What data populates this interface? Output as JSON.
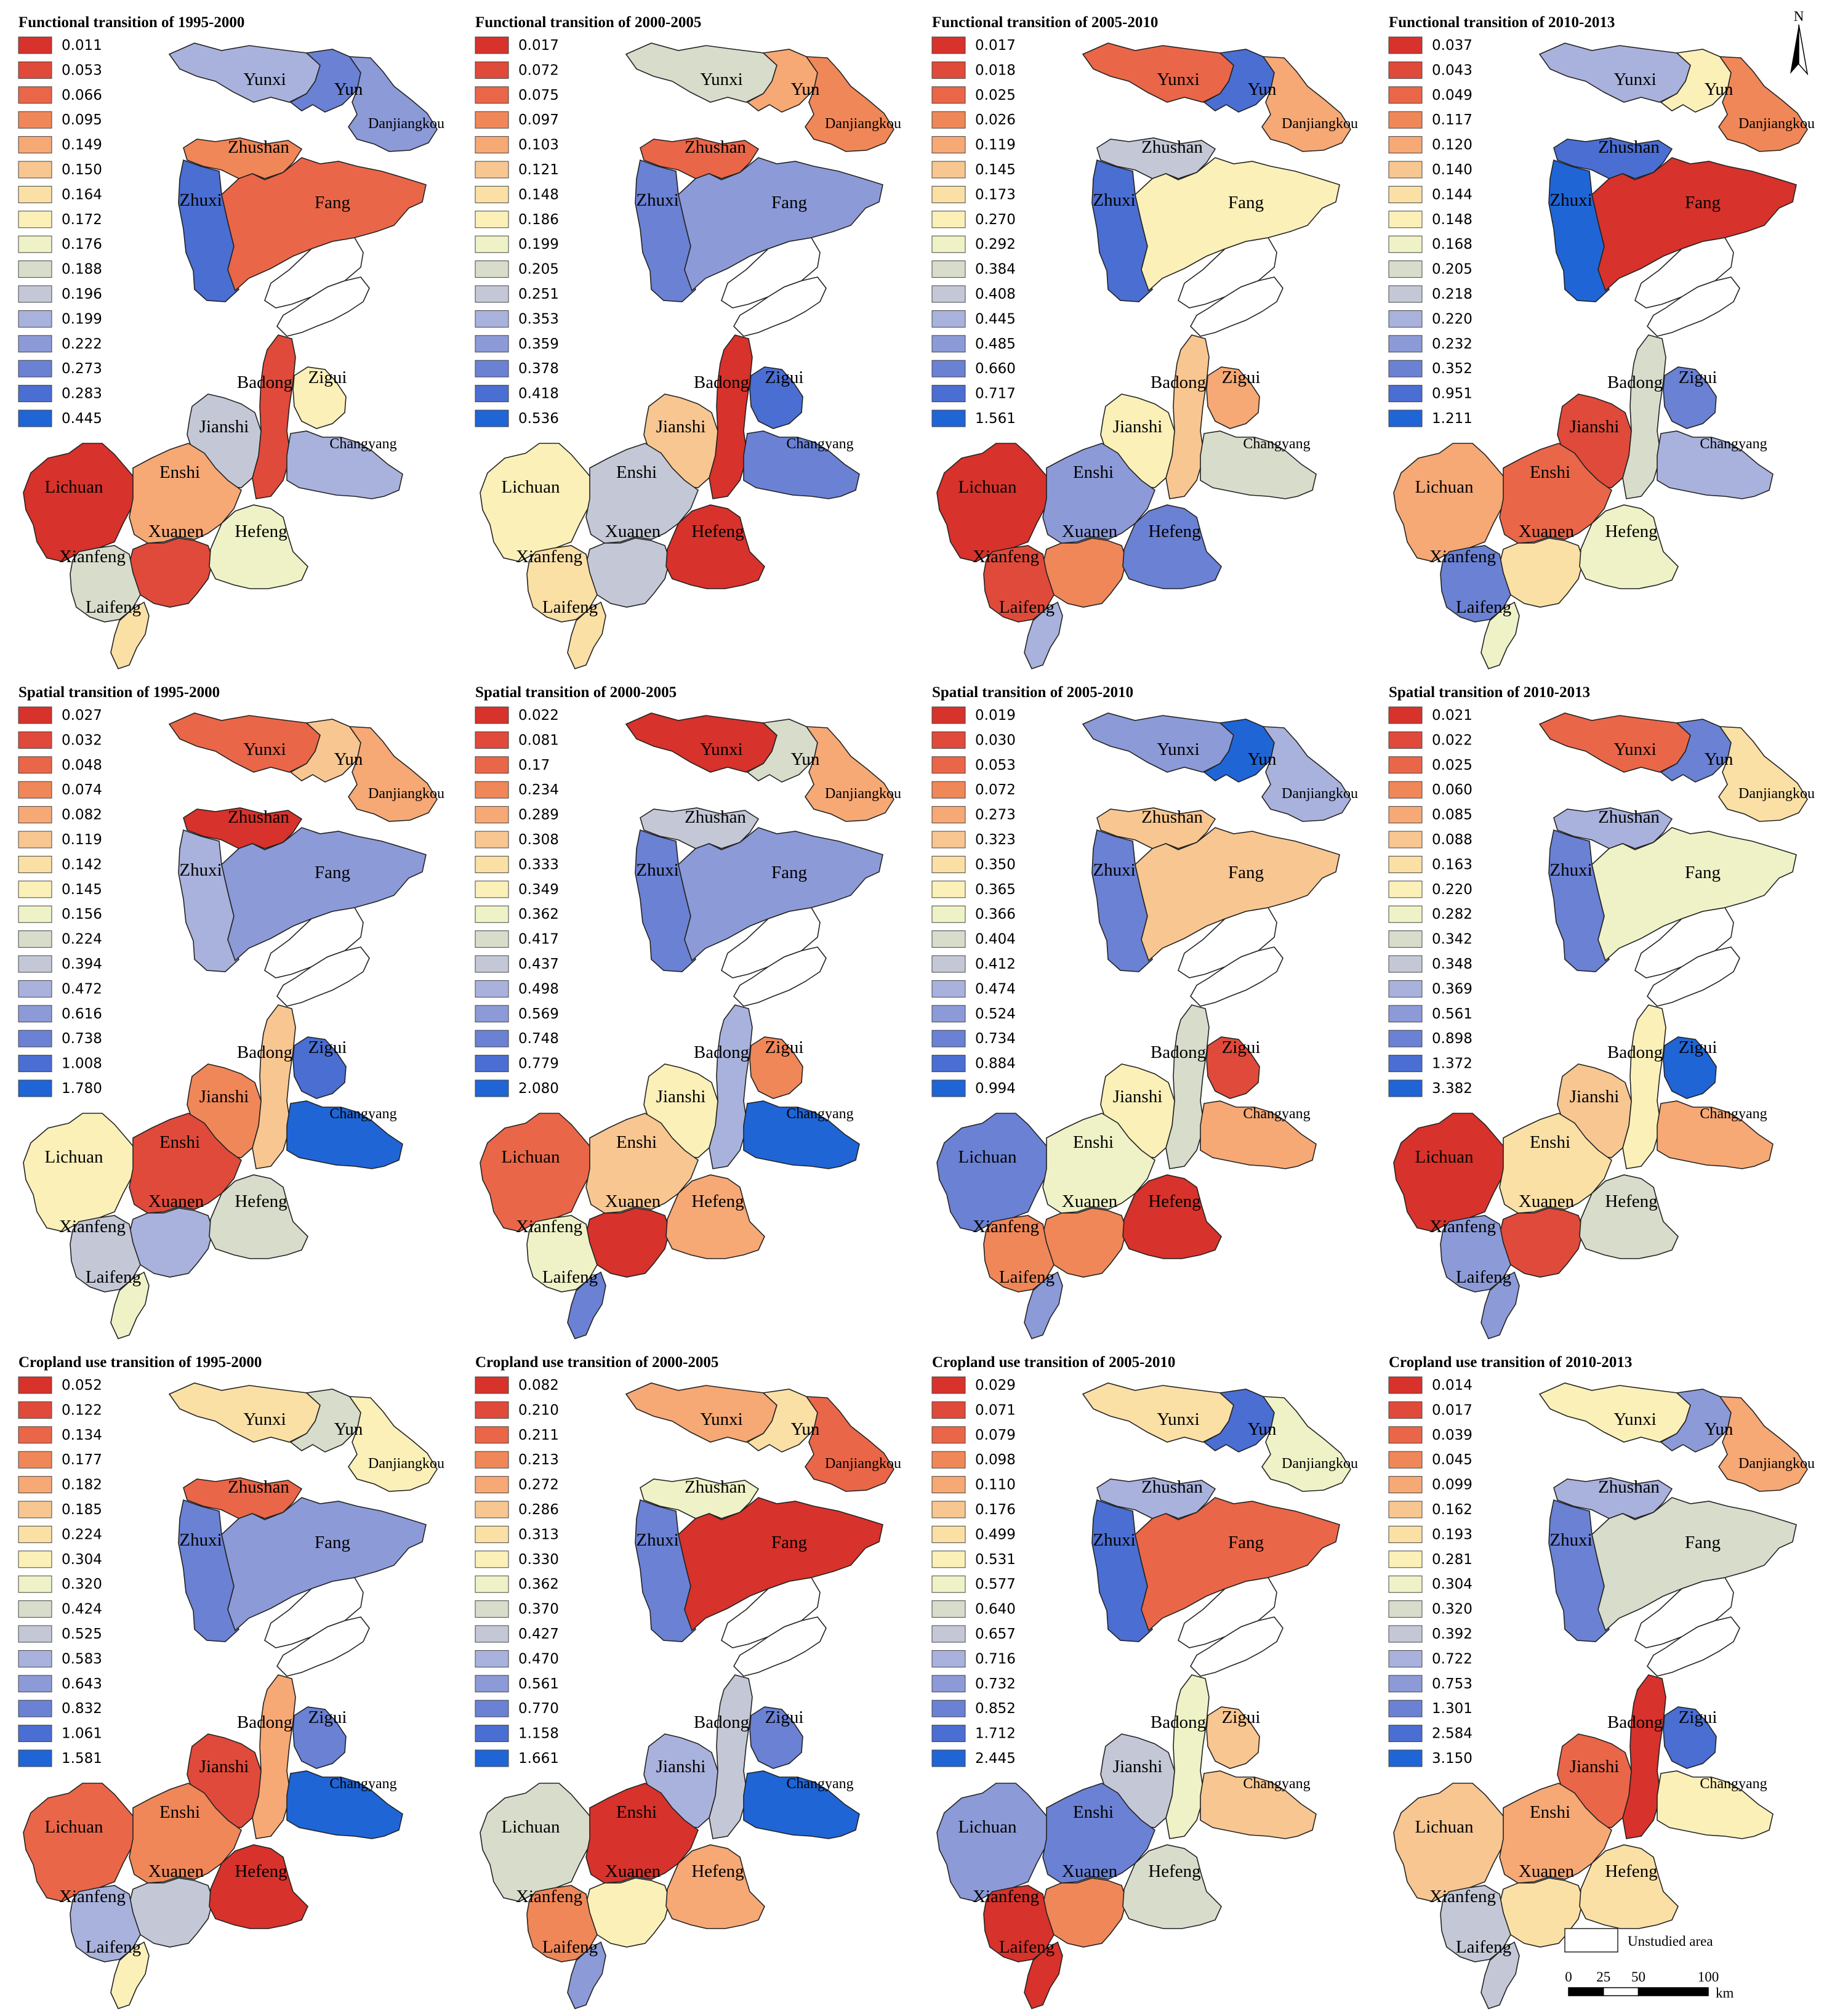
{
  "panels": [
    {
      "title": "Functional transition of 1995-2000",
      "legend": [
        "0.011",
        "0.053",
        "0.066",
        "0.095",
        "0.149",
        "0.150",
        "0.164",
        "0.172",
        "0.176",
        "0.188",
        "0.196",
        "0.199",
        "0.222",
        "0.273",
        "0.283",
        "0.445"
      ],
      "counties": {
        "Yunxi": "0.199",
        "Yun": "0.273",
        "Danjiangkou": "0.222",
        "Zhushan": "0.095",
        "Zhuxi": "0.283",
        "Fang": "0.066",
        "Badong": "0.053",
        "Zigui": "0.172",
        "Jianshi": "0.196",
        "Changyang": "0.199",
        "Lichuan": "0.011",
        "Enshi": "0.149",
        "Xuanen": "0.053",
        "Hefeng": "0.176",
        "Xianfeng": "0.188",
        "Laifeng": "0.164"
      }
    },
    {
      "title": "Functional transition of 2000-2005",
      "legend": [
        "0.017",
        "0.072",
        "0.075",
        "0.097",
        "0.103",
        "0.121",
        "0.148",
        "0.186",
        "0.199",
        "0.205",
        "0.251",
        "0.353",
        "0.359",
        "0.378",
        "0.418",
        "0.536"
      ],
      "counties": {
        "Yunxi": "0.205",
        "Yun": "0.103",
        "Danjiangkou": "0.097",
        "Zhushan": "0.075",
        "Zhuxi": "0.378",
        "Fang": "0.359",
        "Badong": "0.017",
        "Zigui": "0.418",
        "Jianshi": "0.121",
        "Changyang": "0.378",
        "Lichuan": "0.186",
        "Enshi": "0.251",
        "Xuanen": "0.251",
        "Hefeng": "0.017",
        "Xianfeng": "0.148",
        "Laifeng": "0.148"
      }
    },
    {
      "title": "Functional transition of 2005-2010",
      "legend": [
        "0.017",
        "0.018",
        "0.025",
        "0.026",
        "0.119",
        "0.145",
        "0.173",
        "0.270",
        "0.292",
        "0.384",
        "0.408",
        "0.445",
        "0.485",
        "0.660",
        "0.717",
        "1.561"
      ],
      "counties": {
        "Yunxi": "0.025",
        "Yun": "0.717",
        "Danjiangkou": "0.119",
        "Zhushan": "0.408",
        "Zhuxi": "0.717",
        "Fang": "0.270",
        "Badong": "0.145",
        "Zigui": "0.119",
        "Jianshi": "0.270",
        "Changyang": "0.384",
        "Lichuan": "0.017",
        "Enshi": "0.485",
        "Xuanen": "0.026",
        "Hefeng": "0.660",
        "Xianfeng": "0.018",
        "Laifeng": "0.445"
      }
    },
    {
      "title": "Functional transition of 2010-2013",
      "legend": [
        "0.037",
        "0.043",
        "0.049",
        "0.117",
        "0.120",
        "0.140",
        "0.144",
        "0.148",
        "0.168",
        "0.205",
        "0.218",
        "0.220",
        "0.232",
        "0.352",
        "0.951",
        "1.211"
      ],
      "counties": {
        "Yunxi": "0.220",
        "Yun": "0.148",
        "Danjiangkou": "0.117",
        "Zhushan": "0.951",
        "Zhuxi": "1.211",
        "Fang": "0.037",
        "Badong": "0.205",
        "Zigui": "0.352",
        "Jianshi": "0.043",
        "Changyang": "0.220",
        "Lichuan": "0.120",
        "Enshi": "0.049",
        "Xuanen": "0.144",
        "Hefeng": "0.168",
        "Xianfeng": "0.352",
        "Laifeng": "0.168"
      }
    },
    {
      "title": "Spatial transition of 1995-2000",
      "legend": [
        "0.027",
        "0.032",
        "0.048",
        "0.074",
        "0.082",
        "0.119",
        "0.142",
        "0.145",
        "0.156",
        "0.224",
        "0.394",
        "0.472",
        "0.616",
        "0.738",
        "1.008",
        "1.780"
      ],
      "counties": {
        "Yunxi": "0.048",
        "Yun": "0.119",
        "Danjiangkou": "0.082",
        "Zhushan": "0.027",
        "Zhuxi": "0.472",
        "Fang": "0.616",
        "Badong": "0.119",
        "Zigui": "1.008",
        "Jianshi": "0.074",
        "Changyang": "1.780",
        "Lichuan": "0.145",
        "Enshi": "0.032",
        "Xuanen": "0.472",
        "Hefeng": "0.224",
        "Xianfeng": "0.394",
        "Laifeng": "0.156"
      }
    },
    {
      "title": "Spatial transition of 2000-2005",
      "legend": [
        "0.022",
        "0.081",
        "0.17",
        "0.234",
        "0.289",
        "0.308",
        "0.333",
        "0.349",
        "0.362",
        "0.417",
        "0.437",
        "0.498",
        "0.569",
        "0.748",
        "0.779",
        "2.080"
      ],
      "counties": {
        "Yunxi": "0.022",
        "Yun": "0.417",
        "Danjiangkou": "0.289",
        "Zhushan": "0.437",
        "Zhuxi": "0.748",
        "Fang": "0.569",
        "Badong": "0.498",
        "Zigui": "0.234",
        "Jianshi": "0.349",
        "Changyang": "2.080",
        "Lichuan": "0.17",
        "Enshi": "0.308",
        "Xuanen": "0.022",
        "Hefeng": "0.289",
        "Xianfeng": "0.362",
        "Laifeng": "0.748"
      }
    },
    {
      "title": "Spatial transition of 2005-2010",
      "legend": [
        "0.019",
        "0.030",
        "0.053",
        "0.072",
        "0.273",
        "0.323",
        "0.350",
        "0.365",
        "0.366",
        "0.404",
        "0.412",
        "0.474",
        "0.524",
        "0.734",
        "0.884",
        "0.994"
      ],
      "counties": {
        "Yunxi": "0.524",
        "Yun": "0.994",
        "Danjiangkou": "0.474",
        "Zhushan": "0.323",
        "Zhuxi": "0.734",
        "Fang": "0.323",
        "Badong": "0.404",
        "Zigui": "0.030",
        "Jianshi": "0.365",
        "Changyang": "0.273",
        "Lichuan": "0.734",
        "Enshi": "0.366",
        "Xuanen": "0.072",
        "Hefeng": "0.019",
        "Xianfeng": "0.072",
        "Laifeng": "0.524"
      }
    },
    {
      "title": "Spatial transition of 2010-2013",
      "legend": [
        "0.021",
        "0.022",
        "0.025",
        "0.060",
        "0.085",
        "0.088",
        "0.163",
        "0.220",
        "0.282",
        "0.342",
        "0.348",
        "0.369",
        "0.561",
        "0.898",
        "1.372",
        "3.382"
      ],
      "counties": {
        "Yunxi": "0.025",
        "Yun": "0.898",
        "Danjiangkou": "0.163",
        "Zhushan": "0.369",
        "Zhuxi": "0.898",
        "Fang": "0.282",
        "Badong": "0.220",
        "Zigui": "3.382",
        "Jianshi": "0.088",
        "Changyang": "0.085",
        "Lichuan": "0.021",
        "Enshi": "0.163",
        "Xuanen": "0.022",
        "Hefeng": "0.342",
        "Xianfeng": "0.561",
        "Laifeng": "0.561"
      }
    },
    {
      "title": "Cropland use transition of 1995-2000",
      "legend": [
        "0.052",
        "0.122",
        "0.134",
        "0.177",
        "0.182",
        "0.185",
        "0.224",
        "0.304",
        "0.320",
        "0.424",
        "0.525",
        "0.583",
        "0.643",
        "0.832",
        "1.061",
        "1.581"
      ],
      "counties": {
        "Yunxi": "0.224",
        "Yun": "0.424",
        "Danjiangkou": "0.304",
        "Zhushan": "0.134",
        "Zhuxi": "0.832",
        "Fang": "0.643",
        "Badong": "0.182",
        "Zigui": "0.832",
        "Jianshi": "0.122",
        "Changyang": "1.581",
        "Lichuan": "0.134",
        "Enshi": "0.177",
        "Xuanen": "0.525",
        "Hefeng": "0.052",
        "Xianfeng": "0.583",
        "Laifeng": "0.304"
      }
    },
    {
      "title": "Cropland use transition of 2000-2005",
      "legend": [
        "0.082",
        "0.210",
        "0.211",
        "0.213",
        "0.272",
        "0.286",
        "0.313",
        "0.330",
        "0.362",
        "0.370",
        "0.427",
        "0.470",
        "0.561",
        "0.770",
        "1.158",
        "1.661"
      ],
      "counties": {
        "Yunxi": "0.272",
        "Yun": "0.313",
        "Danjiangkou": "0.211",
        "Zhushan": "0.362",
        "Zhuxi": "0.770",
        "Fang": "0.082",
        "Badong": "0.427",
        "Zigui": "0.770",
        "Jianshi": "0.470",
        "Changyang": "1.661",
        "Lichuan": "0.370",
        "Enshi": "0.082",
        "Xuanen": "0.330",
        "Hefeng": "0.272",
        "Xianfeng": "0.213",
        "Laifeng": "0.561"
      }
    },
    {
      "title": "Cropland use transition of 2005-2010",
      "legend": [
        "0.029",
        "0.071",
        "0.079",
        "0.098",
        "0.110",
        "0.176",
        "0.499",
        "0.531",
        "0.577",
        "0.640",
        "0.657",
        "0.716",
        "0.732",
        "0.852",
        "1.712",
        "2.445"
      ],
      "counties": {
        "Yunxi": "0.499",
        "Yun": "1.712",
        "Danjiangkou": "0.577",
        "Zhushan": "0.716",
        "Zhuxi": "1.712",
        "Fang": "0.079",
        "Badong": "0.577",
        "Zigui": "0.176",
        "Jianshi": "0.657",
        "Changyang": "0.176",
        "Lichuan": "0.732",
        "Enshi": "0.852",
        "Xuanen": "0.098",
        "Hefeng": "0.640",
        "Xianfeng": "0.029",
        "Laifeng": "0.029"
      }
    },
    {
      "title": "Cropland use transition of 2010-2013",
      "legend": [
        "0.014",
        "0.017",
        "0.039",
        "0.045",
        "0.099",
        "0.162",
        "0.193",
        "0.281",
        "0.304",
        "0.320",
        "0.392",
        "0.722",
        "0.753",
        "1.301",
        "2.584",
        "3.150"
      ],
      "counties": {
        "Yunxi": "0.281",
        "Yun": "0.753",
        "Danjiangkou": "0.099",
        "Zhushan": "0.722",
        "Zhuxi": "1.301",
        "Fang": "0.320",
        "Badong": "0.014",
        "Zigui": "2.584",
        "Jianshi": "0.039",
        "Changyang": "0.281",
        "Lichuan": "0.162",
        "Enshi": "0.099",
        "Xuanen": "0.193",
        "Hefeng": "0.193",
        "Xianfeng": "0.392",
        "Laifeng": "0.392"
      }
    }
  ],
  "ramp_colors": [
    "#d7322b",
    "#e04a3a",
    "#ea6648",
    "#f08758",
    "#f6a875",
    "#f8c691",
    "#fbe0a6",
    "#fbf0b8",
    "#eef2c6",
    "#d8dccb",
    "#c4c8d6",
    "#a9b2dc",
    "#8c9ad8",
    "#6a81d4",
    "#4a6ed2",
    "#1f65d6"
  ],
  "county_names": [
    "Yunxi",
    "Yun",
    "Danjiangkou",
    "Zhushan",
    "Zhuxi",
    "Fang",
    "Badong",
    "Zigui",
    "Jianshi",
    "Changyang",
    "Lichuan",
    "Enshi",
    "Xuanen",
    "Hefeng",
    "Xianfeng",
    "Laifeng"
  ],
  "north_label": "N",
  "unstudied_label": "Unstudied area",
  "scale_ticks": [
    "0",
    "25",
    "50",
    "100"
  ],
  "scale_unit": "km"
}
